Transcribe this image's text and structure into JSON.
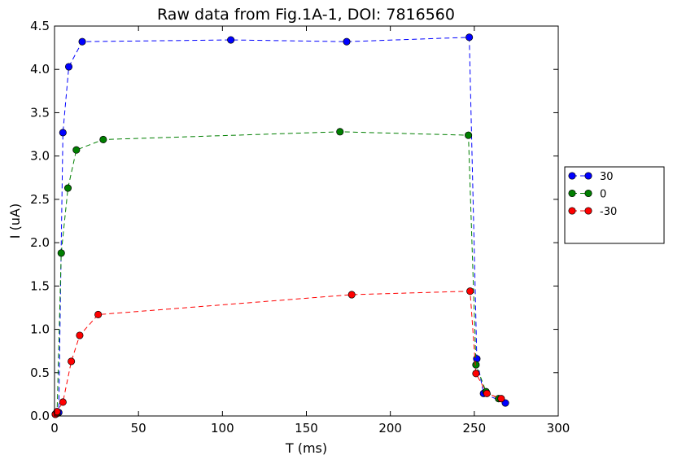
{
  "chart_data": {
    "type": "line",
    "title": "Raw data from Fig.1A-1, DOI: 7816560",
    "xlabel": "T (ms)",
    "ylabel": "I (uA)",
    "xlim": [
      0,
      300
    ],
    "ylim": [
      0,
      4.5
    ],
    "xticks": [
      "0",
      "50",
      "100",
      "150",
      "200",
      "250",
      "300"
    ],
    "yticks": [
      "0.0",
      "0.5",
      "1.0",
      "1.5",
      "2.0",
      "2.5",
      "3.0",
      "3.5",
      "4.0",
      "4.5"
    ],
    "grid": false,
    "legend": "right",
    "series": [
      {
        "name": "30",
        "color": "#0000ff",
        "x": [
          0.5,
          2.5,
          5,
          8.5,
          16.5,
          105,
          174,
          247,
          251.5,
          255.5,
          268.5
        ],
        "y": [
          0.02,
          0.04,
          3.27,
          4.03,
          4.32,
          4.34,
          4.32,
          4.37,
          0.66,
          0.26,
          0.15
        ]
      },
      {
        "name": "0",
        "color": "#007f00",
        "x": [
          0.5,
          1.5,
          4,
          8,
          13,
          29,
          170,
          246.5,
          251,
          257,
          264.5
        ],
        "y": [
          0.02,
          0.03,
          1.88,
          2.63,
          3.07,
          3.19,
          3.28,
          3.24,
          0.59,
          0.28,
          0.2
        ]
      },
      {
        "name": "-30",
        "color": "#ff0000",
        "x": [
          0.5,
          1.5,
          5,
          10,
          15,
          26,
          177,
          247.5,
          251,
          257.5,
          266
        ],
        "y": [
          0.02,
          0.05,
          0.16,
          0.63,
          0.93,
          1.17,
          1.4,
          1.44,
          0.49,
          0.26,
          0.2
        ]
      }
    ]
  }
}
